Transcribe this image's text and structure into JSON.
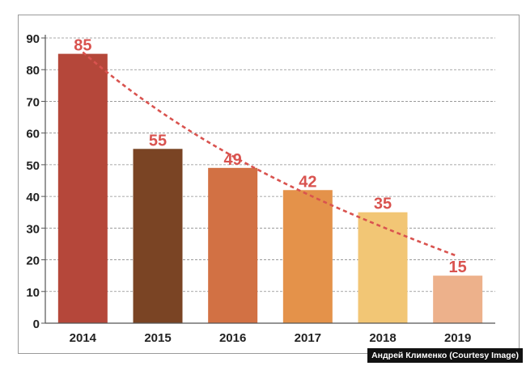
{
  "chart_data": {
    "type": "bar",
    "categories": [
      "2014",
      "2015",
      "2016",
      "2017",
      "2018",
      "2019"
    ],
    "values": [
      85,
      55,
      49,
      42,
      35,
      15
    ],
    "data_labels": [
      "85",
      "55",
      "49",
      "42",
      "35",
      "15"
    ],
    "bar_colors": [
      "#b5473a",
      "#7a4424",
      "#d27144",
      "#e4924a",
      "#f2c675",
      "#edb18b"
    ],
    "label_color": "#d9534f",
    "trendline": {
      "style": "dashed",
      "color": "#d9534f",
      "shape": "curve"
    },
    "ylim": [
      0,
      90
    ],
    "yticks": [
      "0",
      "10",
      "20",
      "30",
      "40",
      "50",
      "60",
      "70",
      "80",
      "90"
    ],
    "grid": "horizontal-dashed",
    "title": "",
    "xlabel": "",
    "ylabel": ""
  },
  "credit": "Андрей Клименко (Courtesy Image)"
}
